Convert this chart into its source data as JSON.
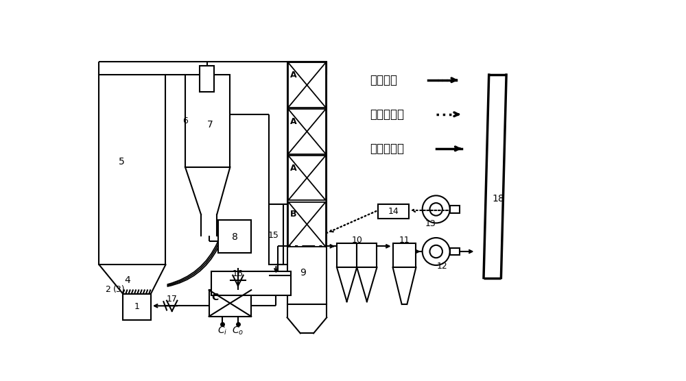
{
  "bg": "#ffffff",
  "lc": "#000000",
  "legend_smoke": "烟气流程",
  "legend_cold": "冷空气流程",
  "legend_hot": "热空气流程"
}
